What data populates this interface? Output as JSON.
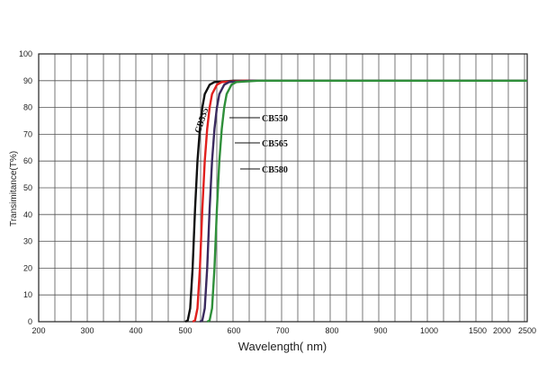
{
  "chart_data": {
    "type": "line",
    "xlabel": "Wavelength( nm)",
    "ylabel": "Transimitance(T%)",
    "x_ticks": [
      "200",
      "300",
      "400",
      "500",
      "600",
      "700",
      "800",
      "900",
      "1000",
      "1500",
      "2000",
      "2500"
    ],
    "y_ticks": [
      "0",
      "10",
      "20",
      "30",
      "40",
      "50",
      "60",
      "70",
      "80",
      "90",
      "100"
    ],
    "ylim": [
      0,
      100
    ],
    "grid": true,
    "series": [
      {
        "name": "CB535",
        "color": "#111111",
        "points": [
          [
            500,
            0
          ],
          [
            505,
            0.5
          ],
          [
            510,
            5
          ],
          [
            515,
            20
          ],
          [
            520,
            42
          ],
          [
            525,
            60
          ],
          [
            530,
            72
          ],
          [
            535,
            80
          ],
          [
            540,
            85
          ],
          [
            550,
            88.5
          ],
          [
            560,
            89.5
          ],
          [
            600,
            90
          ],
          [
            2500,
            90
          ]
        ]
      },
      {
        "name": "CB550",
        "color": "#e0201e",
        "points": [
          [
            515,
            0
          ],
          [
            520,
            0.5
          ],
          [
            525,
            5
          ],
          [
            530,
            20
          ],
          [
            535,
            42
          ],
          [
            540,
            60
          ],
          [
            545,
            72
          ],
          [
            550,
            80
          ],
          [
            555,
            85
          ],
          [
            565,
            88.5
          ],
          [
            575,
            89.5
          ],
          [
            620,
            90
          ],
          [
            2500,
            90
          ]
        ]
      },
      {
        "name": "CB565",
        "color": "#3a2a5e",
        "points": [
          [
            530,
            0
          ],
          [
            535,
            0.5
          ],
          [
            540,
            5
          ],
          [
            545,
            20
          ],
          [
            550,
            42
          ],
          [
            555,
            60
          ],
          [
            560,
            72
          ],
          [
            565,
            80
          ],
          [
            570,
            85
          ],
          [
            580,
            88.5
          ],
          [
            590,
            89.5
          ],
          [
            635,
            90
          ],
          [
            2500,
            90
          ]
        ]
      },
      {
        "name": "CB580",
        "color": "#2f8f3a",
        "points": [
          [
            545,
            0
          ],
          [
            550,
            0.5
          ],
          [
            555,
            5
          ],
          [
            560,
            20
          ],
          [
            565,
            42
          ],
          [
            570,
            60
          ],
          [
            575,
            72
          ],
          [
            580,
            80
          ],
          [
            585,
            85
          ],
          [
            595,
            88.5
          ],
          [
            605,
            89.5
          ],
          [
            650,
            90
          ],
          [
            2500,
            90
          ]
        ]
      }
    ]
  }
}
